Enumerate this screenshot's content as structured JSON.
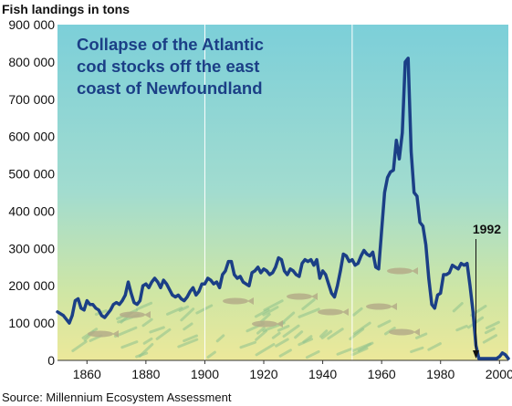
{
  "chart_data": {
    "type": "line",
    "title": "Collapse of the Atlantic cod stocks off the east coast of Newfoundland",
    "title_lines": [
      "Collapse of the Atlantic",
      "cod stocks off the east",
      "coast of Newfoundland"
    ],
    "ylabel": "Fish landings in tons",
    "xlabel": "",
    "source": "Source: Millennium Ecosystem Assessment",
    "xlim": [
      1850,
      2003
    ],
    "ylim": [
      0,
      900000
    ],
    "x_ticks": [
      1860,
      1880,
      1900,
      1920,
      1940,
      1960,
      1980,
      2000
    ],
    "y_ticks": [
      0,
      100000,
      200000,
      300000,
      400000,
      500000,
      600000,
      700000,
      800000,
      900000
    ],
    "y_tick_labels": [
      "0",
      "100 000",
      "200 000",
      "300 000",
      "400 000",
      "500 000",
      "600 000",
      "700 000",
      "800 000",
      "900 000"
    ],
    "vertical_gridlines": [
      1900,
      1950
    ],
    "annotation": {
      "label": "1992",
      "x": 1992,
      "y": 5000
    },
    "line_color": "#1b3f86",
    "series": [
      {
        "x": [
          1850,
          1852,
          1854,
          1855,
          1856,
          1857,
          1858,
          1859,
          1860,
          1861,
          1862,
          1863,
          1864,
          1865,
          1866,
          1867,
          1868,
          1869,
          1870,
          1871,
          1872,
          1873,
          1874,
          1875,
          1876,
          1877,
          1878,
          1879,
          1880,
          1881,
          1882,
          1883,
          1884,
          1885,
          1886,
          1887,
          1888,
          1889,
          1890,
          1891,
          1892,
          1893,
          1894,
          1895,
          1896,
          1897,
          1898,
          1899,
          1900,
          1901,
          1902,
          1903,
          1904,
          1905,
          1906,
          1907,
          1908,
          1909,
          1910,
          1911,
          1912,
          1913,
          1914,
          1915,
          1916,
          1917,
          1918,
          1919,
          1920,
          1921,
          1922,
          1923,
          1924,
          1925,
          1926,
          1927,
          1928,
          1929,
          1930,
          1931,
          1932,
          1933,
          1934,
          1935,
          1936,
          1937,
          1938,
          1939,
          1940,
          1941,
          1942,
          1943,
          1944,
          1945,
          1946,
          1947,
          1948,
          1949,
          1950,
          1951,
          1952,
          1953,
          1954,
          1955,
          1956,
          1957,
          1958,
          1959,
          1960,
          1961,
          1962,
          1963,
          1964,
          1965,
          1966,
          1967,
          1968,
          1969,
          1970,
          1971,
          1972,
          1973,
          1974,
          1975,
          1976,
          1977,
          1978,
          1979,
          1980,
          1981,
          1982,
          1983,
          1984,
          1985,
          1986,
          1987,
          1988,
          1989,
          1990,
          1991,
          1992,
          1993,
          1994,
          1995,
          1996,
          1997,
          1998,
          1999,
          2000,
          2001,
          2002,
          2003
        ],
        "values": [
          130000,
          120000,
          100000,
          120000,
          160000,
          165000,
          140000,
          135000,
          160000,
          150000,
          150000,
          140000,
          135000,
          120000,
          115000,
          125000,
          135000,
          150000,
          155000,
          150000,
          160000,
          175000,
          210000,
          180000,
          155000,
          150000,
          160000,
          200000,
          205000,
          195000,
          210000,
          220000,
          210000,
          195000,
          215000,
          205000,
          190000,
          175000,
          170000,
          175000,
          165000,
          160000,
          170000,
          185000,
          195000,
          175000,
          185000,
          205000,
          205000,
          220000,
          215000,
          205000,
          210000,
          195000,
          230000,
          240000,
          265000,
          265000,
          230000,
          220000,
          225000,
          210000,
          205000,
          200000,
          235000,
          240000,
          250000,
          235000,
          245000,
          240000,
          230000,
          235000,
          250000,
          275000,
          270000,
          240000,
          230000,
          245000,
          240000,
          230000,
          225000,
          260000,
          270000,
          265000,
          270000,
          255000,
          270000,
          220000,
          240000,
          230000,
          205000,
          180000,
          170000,
          200000,
          240000,
          285000,
          280000,
          265000,
          270000,
          255000,
          260000,
          280000,
          295000,
          285000,
          280000,
          290000,
          250000,
          245000,
          350000,
          450000,
          490000,
          505000,
          510000,
          590000,
          540000,
          610000,
          800000,
          810000,
          560000,
          450000,
          440000,
          370000,
          360000,
          310000,
          220000,
          150000,
          140000,
          175000,
          180000,
          230000,
          230000,
          235000,
          255000,
          250000,
          245000,
          260000,
          255000,
          260000,
          200000,
          130000,
          40000,
          5000,
          5000,
          5000,
          5000,
          5000,
          5000,
          5000,
          10000,
          20000,
          15000,
          5000
        ]
      }
    ]
  }
}
